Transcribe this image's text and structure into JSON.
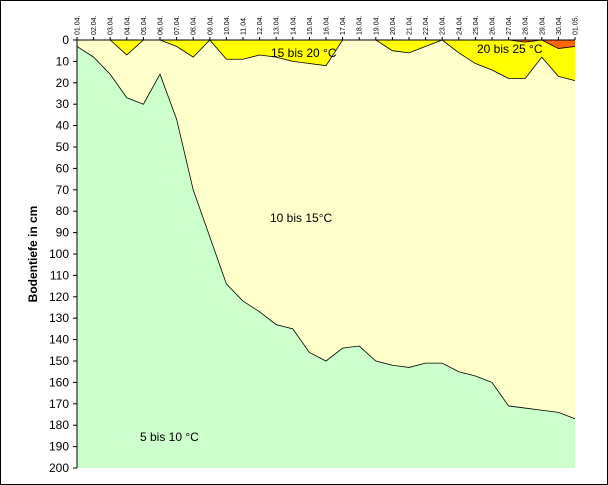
{
  "chart_data": {
    "type": "area",
    "ylabel": "Bodentiefe in cm",
    "ylim": [
      0,
      200
    ],
    "y_inverted": true,
    "y_ticks": [
      0,
      10,
      20,
      30,
      40,
      50,
      60,
      70,
      80,
      90,
      100,
      110,
      120,
      130,
      140,
      150,
      160,
      170,
      180,
      190,
      200
    ],
    "x": [
      "01.04.",
      "02.04.",
      "03.04.",
      "04.04.",
      "05.04.",
      "06.04.",
      "07.04.",
      "08.04.",
      "09.04.",
      "10.04.",
      "11.04.",
      "12.04.",
      "13.04.",
      "14.04.",
      "15.04.",
      "16.04.",
      "17.04.",
      "18.04.",
      "19.04.",
      "20.04.",
      "21.04.",
      "22.04.",
      "23.04.",
      "24.04.",
      "25.04.",
      "26.04.",
      "27.04.",
      "28.04.",
      "29.04.",
      "30.04.",
      "01.05."
    ],
    "boundaries": [
      {
        "name": "upper limit 5 bis 10 °C",
        "values": [
          3,
          8,
          16,
          27,
          30,
          16,
          37,
          70,
          92,
          114,
          122,
          127,
          133,
          135,
          146,
          150,
          144,
          143,
          150,
          152,
          153,
          151,
          151,
          155,
          157,
          160,
          171,
          172,
          173,
          174,
          177
        ]
      },
      {
        "name": "upper limit 10 bis 15°C",
        "values": [
          0,
          0,
          0,
          7,
          0,
          0,
          3,
          8,
          0,
          9,
          9,
          7,
          8,
          10,
          11,
          12,
          0,
          0,
          0,
          5,
          6,
          3,
          0,
          6,
          11,
          14,
          18,
          18,
          8,
          17,
          19
        ]
      },
      {
        "name": "upper limit 15 bis 20 °C",
        "values": [
          0,
          0,
          0,
          0,
          0,
          0,
          0,
          0,
          0,
          0,
          0,
          0,
          0,
          0,
          0,
          0,
          0,
          0,
          0,
          0,
          0,
          0,
          0,
          0,
          0,
          0,
          0,
          0,
          0,
          0,
          0
        ]
      },
      {
        "name": "upper limit 20 bis 25 °C",
        "values": [
          0,
          0,
          0,
          0,
          0,
          0,
          0,
          0,
          0,
          0,
          0,
          0,
          0,
          0,
          0,
          0,
          0,
          0,
          0,
          0,
          0,
          0,
          0,
          0,
          0,
          0,
          0,
          1,
          0,
          4,
          3
        ]
      }
    ],
    "region_labels": [
      {
        "text": "5 bis 10 °C",
        "color": "#ccffcc"
      },
      {
        "text": "10 bis 15°C",
        "color": "#ffffcc"
      },
      {
        "text": "15 bis 20 °C",
        "color": "#ffff00"
      },
      {
        "text": "20 bis 25 °C",
        "color": "#ff9900"
      },
      {
        "text": "",
        "color": "#ff6600"
      }
    ],
    "grid": false,
    "legend": "none"
  }
}
